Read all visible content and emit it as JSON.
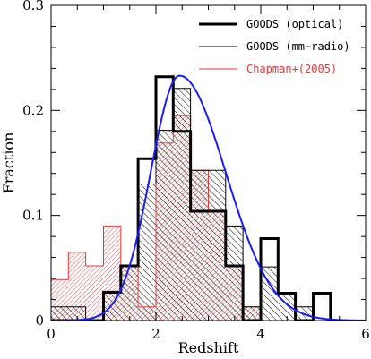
{
  "chart_data": {
    "type": "bar",
    "xlabel": "Redshift",
    "ylabel": "Fraction",
    "xlim": [
      0,
      6
    ],
    "ylim": [
      0,
      0.3
    ],
    "x_ticks": [
      0,
      2,
      4,
      6
    ],
    "y_ticks": [
      0,
      0.1,
      0.2,
      0.3
    ],
    "y_tick_labels": [
      "0",
      "0.1",
      "0.2",
      "0.3"
    ],
    "bin_width": 0.33,
    "bin_edges": [
      0,
      0.33,
      0.66,
      1.0,
      1.33,
      1.66,
      2.0,
      2.33,
      2.66,
      3.0,
      3.33,
      3.66,
      4.0,
      4.33,
      4.66,
      5.0,
      5.33
    ],
    "legend_position": "top-right",
    "series": [
      {
        "name": "GOODS (optical)",
        "color": "#000000",
        "style": "thick-step",
        "values": [
          0.0,
          0.0,
          0.0,
          0.027,
          0.052,
          0.154,
          0.232,
          0.18,
          0.104,
          0.104,
          0.052,
          0.0,
          0.078,
          0.026,
          0.0,
          0.026
        ]
      },
      {
        "name": "GOODS (mm−radio)",
        "color": "#000000",
        "style": "thin-step-hatched",
        "values": [
          0.013,
          0.013,
          0.0,
          0.026,
          0.052,
          0.13,
          0.181,
          0.221,
          0.143,
          0.143,
          0.09,
          0.013,
          0.051,
          0.026,
          0.013,
          0.0
        ]
      },
      {
        "name": "Chapman+(2005)",
        "color": "#e23a3a",
        "style": "thin-step-hatched",
        "values": [
          0.039,
          0.065,
          0.052,
          0.09,
          0.052,
          0.013,
          0.169,
          0.195,
          0.143,
          0.104,
          0.052,
          0.013,
          0.0,
          0.0,
          0.0,
          0.0
        ]
      }
    ],
    "curve": {
      "color": "#1a1aff",
      "peak_x": 2.45,
      "peak_y": 0.233,
      "sigma_left": 0.55,
      "sigma_right": 0.88
    }
  }
}
